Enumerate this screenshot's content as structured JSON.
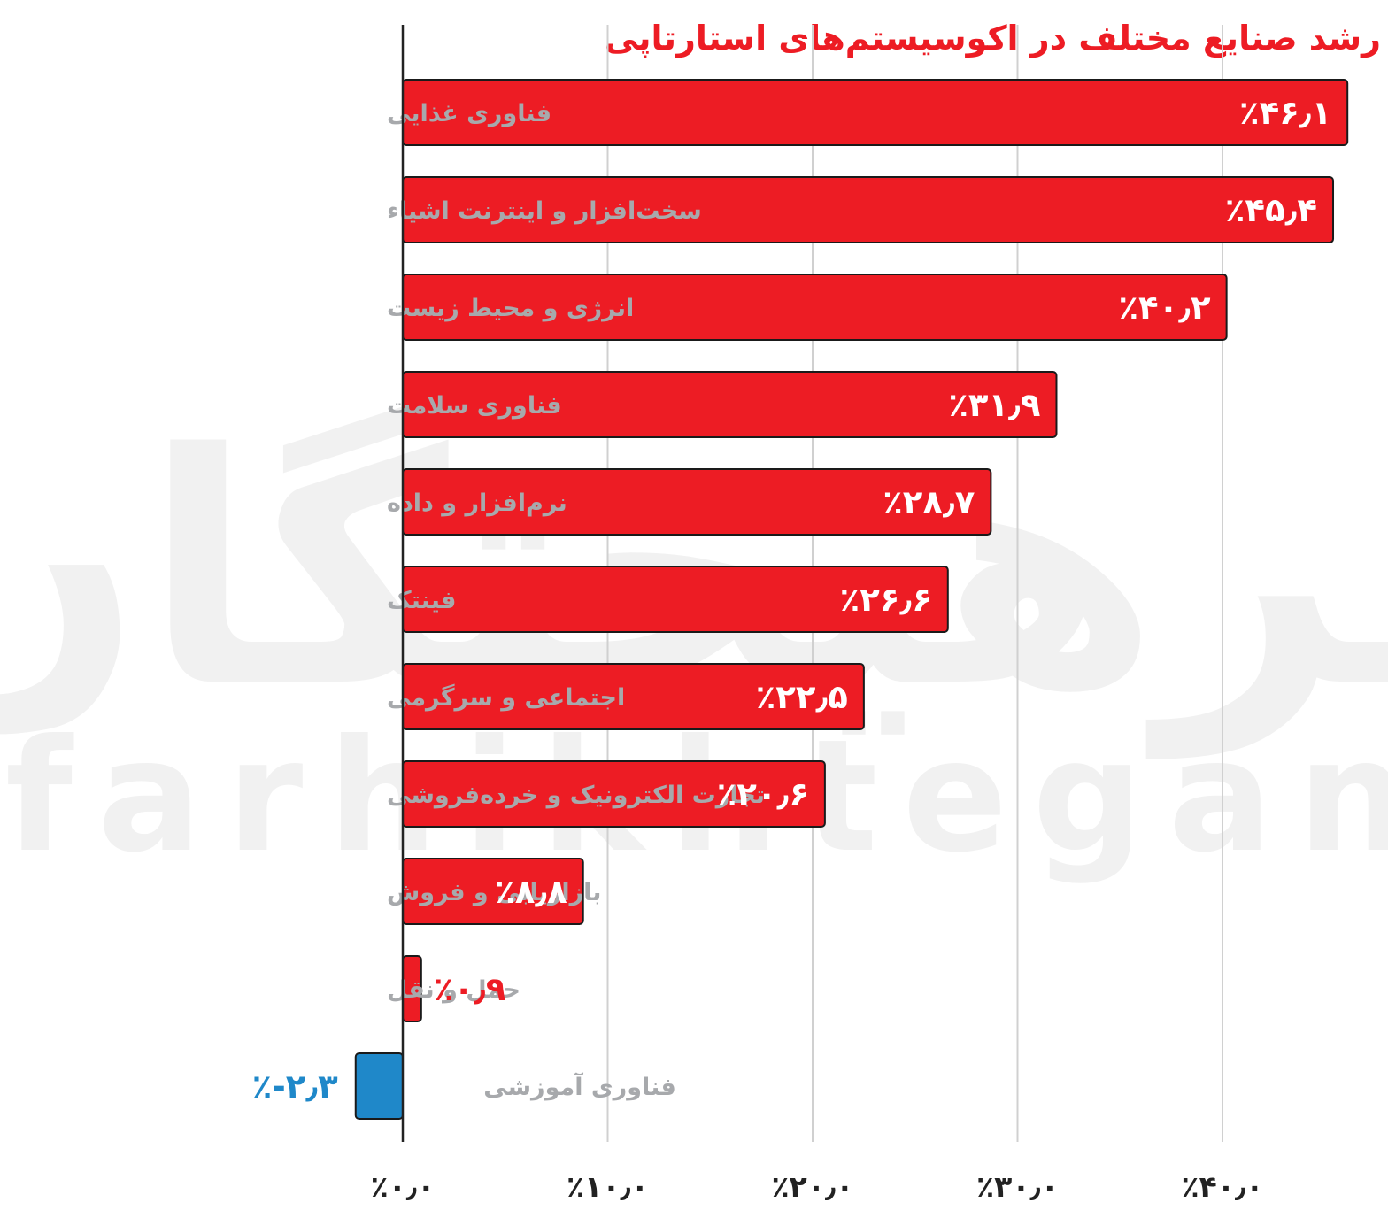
{
  "chart_data": {
    "type": "bar",
    "orientation": "horizontal",
    "title": "رشد صنایع مختلف در اکوسیستم‌های استارتاپی",
    "categories": [
      "فناوری غذایی",
      "سخت‌افزار و اینترنت اشیاء",
      "انرژی و محیط زیست",
      "فناوری سلامت",
      "نرم‌افزار و داده",
      "فینتک",
      "اجتماعی و سرگرمی",
      "تجارت الکترونیک و خرده‌فروشی",
      "بازاریابی و فروش",
      "حمل و نقل",
      "فناوری آموزشی"
    ],
    "values": [
      46.1,
      45.4,
      40.2,
      31.9,
      28.7,
      26.6,
      22.5,
      20.6,
      8.8,
      0.9,
      -2.3
    ],
    "value_labels": [
      "٪۴۶٫۱",
      "٪۴۵٫۴",
      "٪۴۰٫۲",
      "٪۳۱٫۹",
      "٪۲۸٫۷",
      "٪۲۶٫۶",
      "٪۲۲٫۵",
      "٪۲۰٫۶",
      "٪۸٫۸",
      "٪۰٫۹",
      "٪-۲٫۳"
    ],
    "xlim": [
      0,
      46.1
    ],
    "xticks": [
      0,
      10,
      20,
      30,
      40
    ],
    "xtick_labels": [
      "٪۰٫۰",
      "٪۱۰٫۰",
      "٪۲۰٫۰",
      "٪۳۰٫۰",
      "٪۴۰٫۰"
    ],
    "grid": true,
    "xlabel": "",
    "ylabel": ""
  },
  "watermark": {
    "fa": "فرهیختگان",
    "en": "farhikhtegan"
  },
  "colors": {
    "positive": "#ed1c24",
    "negative": "#1f88c9",
    "title": "#ed1c24",
    "category_text": "#a7a9ac",
    "bar_outline": "#1a1a1a",
    "grid": "#d0d0d0",
    "axis": "#222222"
  }
}
